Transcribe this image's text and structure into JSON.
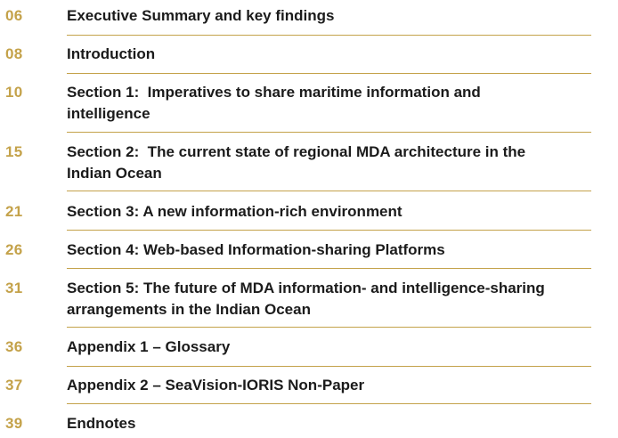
{
  "toc": {
    "entries": [
      {
        "page": "06",
        "title": "Executive Summary and key findings"
      },
      {
        "page": "08",
        "title": "Introduction"
      },
      {
        "page": "10",
        "title": "Section 1:  Imperatives to share maritime information and\nintelligence"
      },
      {
        "page": "15",
        "title": "Section 2:  The current state of regional MDA architecture in the\nIndian Ocean"
      },
      {
        "page": "21",
        "title": "Section 3: A new information-rich environment"
      },
      {
        "page": "26",
        "title": "Section 4: Web-based Information-sharing Platforms"
      },
      {
        "page": "31",
        "title": "Section 5: The future of MDA information- and intelligence-sharing\narrangements in the Indian Ocean"
      },
      {
        "page": "36",
        "title": "Appendix 1 – Glossary"
      },
      {
        "page": "37",
        "title": "Appendix 2 – SeaVision-IORIS Non-Paper"
      },
      {
        "page": "39",
        "title": "Endnotes"
      }
    ]
  },
  "colors": {
    "accent": "#c4a24a",
    "text": "#1b1b1b"
  }
}
